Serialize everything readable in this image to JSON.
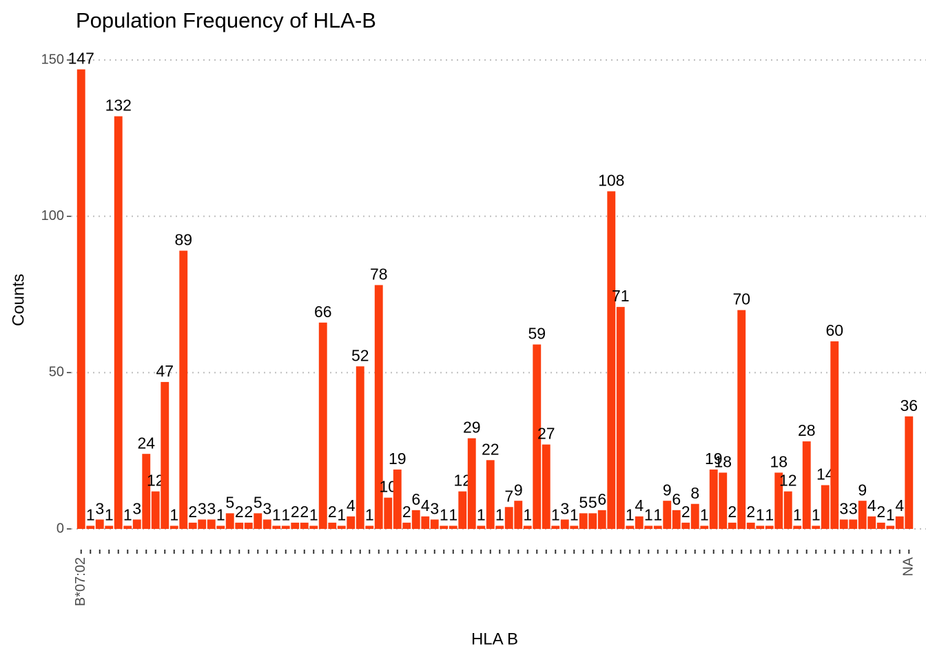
{
  "chart_data": {
    "type": "bar",
    "title": "Population Frequency of HLA-B",
    "xlabel": "HLA B",
    "ylabel": "Counts",
    "categories": [
      "B*07:02",
      null,
      null,
      null,
      null,
      null,
      null,
      null,
      null,
      null,
      null,
      null,
      null,
      null,
      null,
      null,
      null,
      null,
      null,
      null,
      null,
      null,
      null,
      null,
      null,
      null,
      null,
      null,
      null,
      null,
      null,
      null,
      null,
      null,
      null,
      null,
      null,
      null,
      null,
      null,
      null,
      null,
      null,
      null,
      null,
      null,
      null,
      null,
      null,
      null,
      null,
      null,
      null,
      null,
      null,
      null,
      null,
      null,
      null,
      null,
      null,
      null,
      null,
      null,
      null,
      null,
      null,
      null,
      null,
      null,
      null,
      null,
      null,
      null,
      null,
      null,
      null,
      null,
      null,
      null,
      null,
      null,
      null,
      null,
      null,
      null,
      null,
      null,
      null,
      "NA"
    ],
    "values": [
      147,
      1,
      3,
      1,
      132,
      1,
      3,
      24,
      12,
      47,
      1,
      89,
      2,
      3,
      3,
      1,
      5,
      2,
      2,
      5,
      3,
      1,
      1,
      2,
      2,
      1,
      66,
      2,
      1,
      4,
      52,
      1,
      78,
      10,
      19,
      2,
      6,
      4,
      3,
      1,
      1,
      12,
      29,
      1,
      22,
      1,
      7,
      9,
      1,
      59,
      27,
      1,
      3,
      1,
      5,
      5,
      6,
      108,
      71,
      1,
      4,
      1,
      1,
      9,
      6,
      2,
      8,
      1,
      19,
      18,
      2,
      70,
      2,
      1,
      1,
      18,
      12,
      1,
      28,
      1,
      14,
      60,
      3,
      3,
      9,
      4,
      2,
      1,
      4,
      36
    ],
    "color": "#fc3d0e",
    "ylim": [
      0,
      150
    ],
    "yticks": [
      0,
      50,
      100,
      150
    ],
    "grid": true
  }
}
